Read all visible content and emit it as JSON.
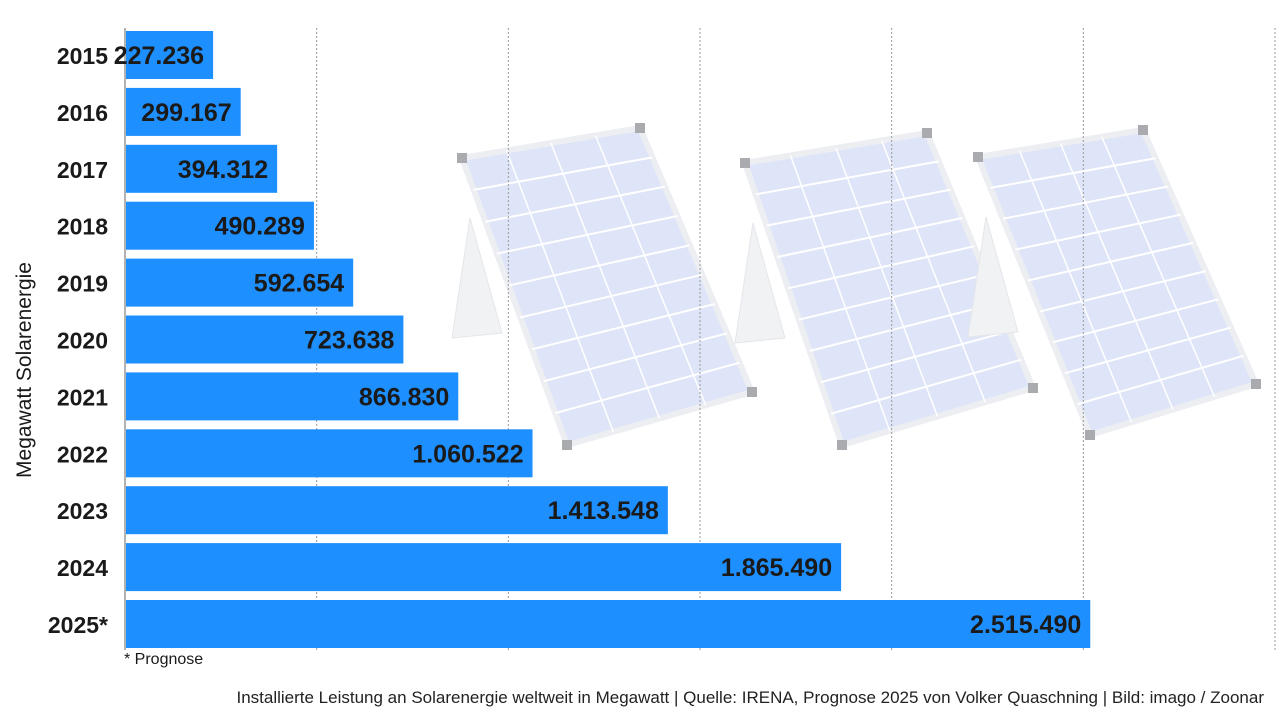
{
  "chart_data": {
    "type": "bar",
    "orientation": "horizontal",
    "categories": [
      "2015",
      "2016",
      "2017",
      "2018",
      "2019",
      "2020",
      "2021",
      "2022",
      "2023",
      "2024",
      "2025*"
    ],
    "values": [
      227236,
      299167,
      394312,
      490289,
      592654,
      723638,
      866830,
      1060522,
      1413548,
      1865490,
      2515490
    ],
    "value_labels": [
      "227.236",
      "299.167",
      "394.312",
      "490.289",
      "592.654",
      "723.638",
      "866.830",
      "1.060.522",
      "1.413.548",
      "1.865.490",
      "2.515.490"
    ],
    "ylabel": "Megawatt Solarenergie",
    "xlabel": "",
    "xlim": [
      0,
      3000000
    ],
    "grid": "vertical dotted every 500000",
    "bar_color": "#1e8fff",
    "background_image": "solar-panels"
  },
  "footnote": "* Prognose",
  "caption": "Installierte Leistung an Solarenergie weltweit in Megawatt | Quelle: IRENA, Prognose 2025 von Volker Quaschning | Bild: imago / Zoonar"
}
